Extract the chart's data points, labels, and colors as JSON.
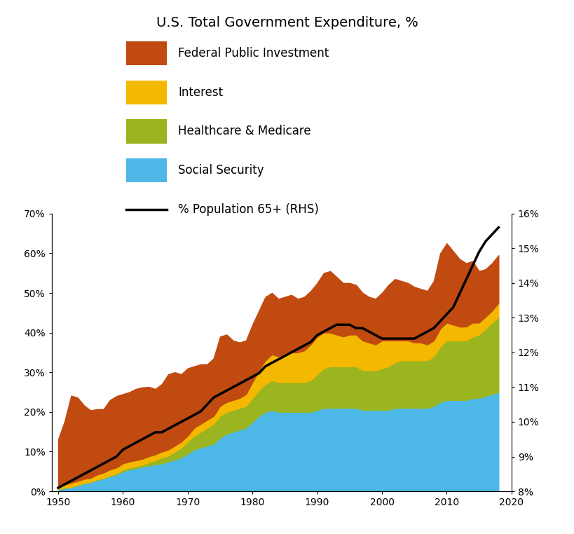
{
  "title": "U.S. Total Government Expenditure, %",
  "years": [
    1950,
    1951,
    1952,
    1953,
    1954,
    1955,
    1956,
    1957,
    1958,
    1959,
    1960,
    1961,
    1962,
    1963,
    1964,
    1965,
    1966,
    1967,
    1968,
    1969,
    1970,
    1971,
    1972,
    1973,
    1974,
    1975,
    1976,
    1977,
    1978,
    1979,
    1980,
    1981,
    1982,
    1983,
    1984,
    1985,
    1986,
    1987,
    1988,
    1989,
    1990,
    1991,
    1992,
    1993,
    1994,
    1995,
    1996,
    1997,
    1998,
    1999,
    2000,
    2001,
    2002,
    2003,
    2004,
    2005,
    2006,
    2007,
    2008,
    2009,
    2010,
    2011,
    2012,
    2013,
    2014,
    2015,
    2016,
    2017,
    2018
  ],
  "social_security": [
    0.5,
    0.8,
    1.0,
    1.5,
    2.0,
    2.3,
    2.8,
    3.2,
    3.8,
    4.2,
    5.0,
    5.5,
    5.8,
    6.2,
    6.5,
    6.8,
    7.0,
    7.5,
    8.0,
    8.5,
    9.5,
    10.5,
    11.0,
    11.5,
    12.0,
    13.5,
    14.5,
    15.0,
    15.5,
    16.0,
    17.5,
    19.0,
    20.0,
    20.5,
    20.0,
    20.0,
    20.0,
    20.0,
    20.0,
    20.0,
    20.5,
    21.0,
    21.0,
    21.0,
    21.0,
    21.0,
    21.0,
    20.5,
    20.5,
    20.5,
    20.5,
    20.5,
    21.0,
    21.0,
    21.0,
    21.0,
    21.0,
    21.0,
    21.5,
    22.5,
    23.0,
    23.0,
    23.0,
    23.0,
    23.5,
    23.5,
    24.0,
    24.5,
    25.0
  ],
  "healthcare": [
    0.1,
    0.1,
    0.1,
    0.1,
    0.1,
    0.1,
    0.2,
    0.2,
    0.2,
    0.3,
    0.5,
    0.5,
    0.5,
    0.5,
    0.8,
    1.0,
    1.5,
    1.5,
    2.0,
    2.5,
    3.0,
    3.5,
    4.0,
    4.5,
    5.0,
    5.5,
    5.5,
    5.5,
    5.5,
    5.5,
    6.0,
    6.5,
    7.0,
    7.5,
    7.5,
    7.5,
    7.5,
    7.5,
    7.5,
    8.0,
    9.0,
    10.0,
    10.5,
    10.5,
    10.5,
    10.5,
    10.5,
    10.0,
    10.0,
    10.0,
    10.5,
    11.0,
    11.5,
    12.0,
    12.0,
    12.0,
    12.0,
    12.0,
    12.5,
    14.0,
    15.0,
    15.0,
    15.0,
    15.0,
    15.5,
    16.0,
    17.0,
    18.0,
    19.0
  ],
  "interest": [
    0.5,
    0.8,
    1.0,
    1.0,
    1.0,
    1.0,
    1.2,
    1.3,
    1.5,
    1.5,
    1.5,
    1.5,
    1.5,
    1.5,
    1.5,
    1.5,
    1.5,
    1.5,
    1.5,
    1.5,
    1.5,
    2.0,
    2.0,
    2.0,
    2.0,
    2.5,
    2.5,
    2.5,
    2.5,
    3.0,
    4.0,
    5.0,
    6.0,
    6.5,
    6.5,
    7.0,
    7.5,
    7.5,
    8.0,
    9.0,
    9.5,
    9.0,
    8.5,
    8.0,
    7.5,
    8.0,
    8.0,
    7.5,
    7.0,
    6.5,
    7.0,
    6.5,
    5.5,
    5.0,
    5.0,
    4.5,
    4.5,
    4.0,
    4.0,
    4.5,
    4.5,
    4.0,
    3.5,
    3.5,
    3.5,
    3.0,
    3.0,
    3.0,
    3.5
  ],
  "federal_public_investment": [
    12.0,
    16.0,
    22.0,
    21.0,
    18.5,
    17.0,
    16.5,
    16.0,
    17.5,
    18.0,
    17.5,
    17.5,
    18.0,
    18.0,
    17.5,
    16.5,
    17.0,
    19.0,
    18.5,
    17.0,
    17.0,
    15.5,
    15.0,
    14.0,
    14.5,
    17.5,
    17.0,
    15.0,
    14.0,
    13.5,
    14.5,
    15.0,
    16.0,
    15.5,
    14.5,
    14.5,
    14.5,
    13.5,
    13.5,
    13.5,
    13.5,
    15.0,
    15.5,
    14.5,
    13.5,
    13.0,
    12.5,
    12.0,
    11.5,
    11.5,
    12.0,
    14.0,
    15.5,
    15.0,
    14.5,
    14.0,
    13.5,
    13.5,
    15.0,
    19.0,
    20.0,
    18.5,
    17.0,
    16.0,
    15.5,
    13.0,
    12.0,
    12.0,
    12.0
  ],
  "population_65plus": [
    8.1,
    8.2,
    8.3,
    8.4,
    8.5,
    8.6,
    8.7,
    8.8,
    8.9,
    9.0,
    9.2,
    9.3,
    9.4,
    9.5,
    9.6,
    9.7,
    9.7,
    9.8,
    9.9,
    10.0,
    10.1,
    10.2,
    10.3,
    10.5,
    10.7,
    10.8,
    10.9,
    11.0,
    11.1,
    11.2,
    11.3,
    11.4,
    11.6,
    11.7,
    11.8,
    11.9,
    12.0,
    12.1,
    12.2,
    12.3,
    12.5,
    12.6,
    12.7,
    12.8,
    12.8,
    12.8,
    12.7,
    12.7,
    12.6,
    12.5,
    12.4,
    12.4,
    12.4,
    12.4,
    12.4,
    12.4,
    12.5,
    12.6,
    12.7,
    12.9,
    13.1,
    13.3,
    13.7,
    14.1,
    14.5,
    14.9,
    15.2,
    15.4,
    15.6
  ],
  "color_social_security": "#4db8e8",
  "color_healthcare": "#9ab520",
  "color_interest": "#f5b800",
  "color_federal": "#c04a10",
  "color_line": "#000000",
  "ylim_left": [
    0,
    70
  ],
  "ylim_right": [
    8,
    16
  ],
  "yticks_left": [
    0,
    10,
    20,
    30,
    40,
    50,
    60,
    70
  ],
  "yticks_right": [
    8,
    9,
    10,
    11,
    12,
    13,
    14,
    15,
    16
  ],
  "xticks": [
    1950,
    1960,
    1970,
    1980,
    1990,
    2000,
    2010,
    2020
  ],
  "legend_labels": [
    "Federal Public Investment",
    "Interest",
    "Healthcare & Medicare",
    "Social Security",
    "% Population 65+ (RHS)"
  ]
}
